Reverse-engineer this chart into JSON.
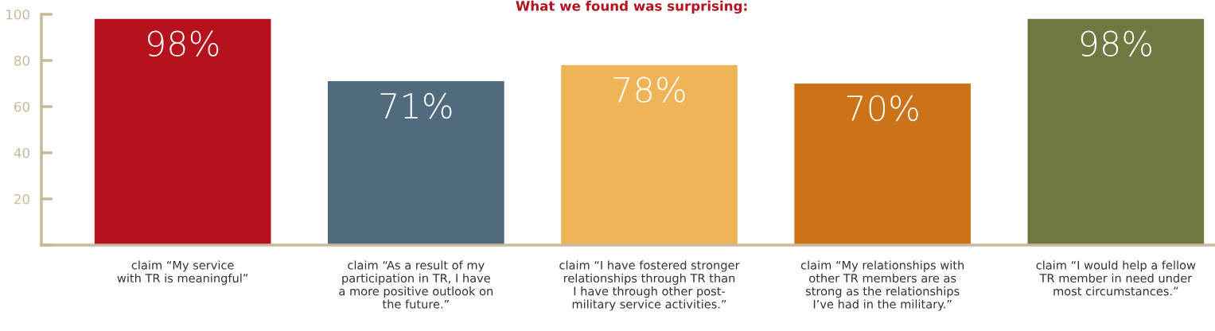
{
  "chart_data": {
    "type": "bar",
    "title": "What we found was surprising:",
    "categories": [
      "claim “My service\nwith TR is meaningful”",
      "claim “As a result of my\nparticipation in TR, I have\na more positive outlook on\nthe future.”",
      "claim “I have fostered stronger\nrelationships through TR than\nI have through other post-\nmilitary service activities.”",
      "claim “My relationships with\nother TR members are as\nstrong as the relationships\nI’ve had in the military.”",
      "claim “I would help a fellow\nTR member in need under\nmost circumstances.”"
    ],
    "values": [
      98,
      71,
      78,
      70,
      98
    ],
    "value_labels": [
      "98%",
      "71%",
      "78%",
      "70%",
      "98%"
    ],
    "colors": [
      "#b5121e",
      "#506a7e",
      "#efb455",
      "#cc7318",
      "#707740"
    ],
    "ylim": [
      0,
      100
    ],
    "yticks": [
      {
        "value": 0,
        "label": null
      },
      20,
      40,
      60,
      80,
      100
    ],
    "grid": false,
    "legend": false
  }
}
